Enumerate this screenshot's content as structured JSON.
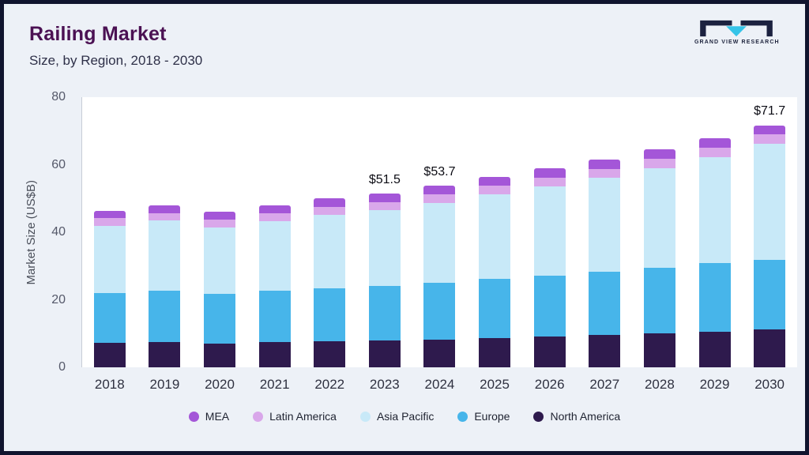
{
  "header": {
    "title": "Railing Market",
    "subtitle": "Size, by Region, 2018 - 2030"
  },
  "logo": {
    "text": "GRAND VIEW RESEARCH",
    "accent_color": "#35c4e8",
    "dark_color": "#1c2240"
  },
  "chart_data": {
    "type": "bar",
    "stacked": true,
    "title": "Railing Market Size, by Region, 2018 - 2030",
    "ylabel": "Market Size (US$B)",
    "ylim": [
      0,
      80
    ],
    "yticks": [
      0,
      20,
      40,
      60,
      80
    ],
    "grid": false,
    "legend_position": "bottom",
    "categories": [
      "2018",
      "2019",
      "2020",
      "2021",
      "2022",
      "2023",
      "2024",
      "2025",
      "2026",
      "2027",
      "2028",
      "2029",
      "2030"
    ],
    "series": [
      {
        "name": "North America",
        "color": "#2e1a4d",
        "values": [
          7.3,
          7.5,
          7.1,
          7.4,
          7.7,
          8.0,
          8.3,
          8.7,
          9.1,
          9.5,
          10.0,
          10.6,
          11.3
        ]
      },
      {
        "name": "Europe",
        "color": "#47b5ea",
        "values": [
          14.8,
          15.3,
          14.7,
          15.2,
          15.7,
          16.2,
          16.8,
          17.5,
          18.1,
          18.8,
          19.4,
          20.2,
          20.5
        ]
      },
      {
        "name": "Asia Pacific",
        "color": "#c8e9f8",
        "values": [
          19.8,
          20.6,
          19.7,
          20.7,
          21.8,
          22.4,
          23.6,
          25.0,
          26.4,
          27.8,
          29.6,
          31.5,
          34.3
        ]
      },
      {
        "name": "Latin America",
        "color": "#d9a7ea",
        "values": [
          2.3,
          2.3,
          2.2,
          2.3,
          2.4,
          2.4,
          2.5,
          2.6,
          2.6,
          2.7,
          2.7,
          2.8,
          2.8
        ]
      },
      {
        "name": "MEA",
        "color": "#a456d8",
        "values": [
          2.2,
          2.3,
          2.3,
          2.4,
          2.4,
          2.5,
          2.5,
          2.6,
          2.7,
          2.7,
          2.8,
          2.8,
          2.8
        ]
      }
    ],
    "totals_labeled": {
      "2023": 51.5,
      "2024": 53.7,
      "2030": 71.7
    },
    "annotations": [
      {
        "category": "2023",
        "label": "$51.5"
      },
      {
        "category": "2024",
        "label": "$53.7"
      },
      {
        "category": "2030",
        "label": "$71.7"
      }
    ],
    "legend": [
      "MEA",
      "Latin America",
      "Asia Pacific",
      "Europe",
      "North America"
    ]
  }
}
